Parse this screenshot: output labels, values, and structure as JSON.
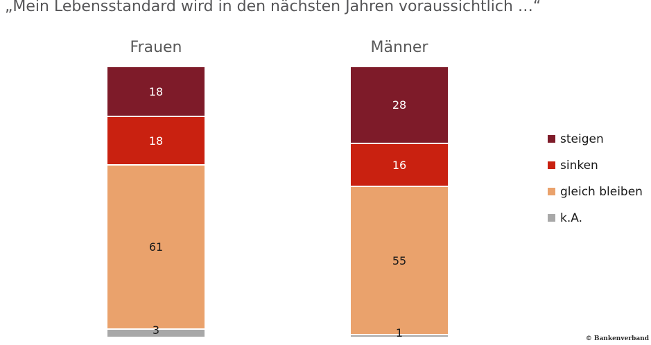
{
  "title": "„Mein Lebensstandard wird in den nächsten Jahren voraussichtlich …“",
  "footer": {
    "credit": "© Bankenverband"
  },
  "chart_data": {
    "type": "stacked-bar",
    "orientation": "vertical",
    "categories": [
      "Frauen",
      "Männer"
    ],
    "series": [
      {
        "name": "steigen",
        "color": "#7E1B29",
        "label_color": "#ffffff",
        "values": [
          18,
          28
        ]
      },
      {
        "name": "sinken",
        "color": "#C92110",
        "label_color": "#ffffff",
        "values": [
          18,
          16
        ]
      },
      {
        "name": "gleich bleiben",
        "color": "#EAA26C",
        "label_color": "#1a1a1a",
        "values": [
          61,
          55
        ]
      },
      {
        "name": "k.A.",
        "color": "#A8A8A8",
        "label_color": "#1a1a1a",
        "values": [
          3,
          1
        ]
      }
    ],
    "total": 100,
    "value_labels": "inside",
    "legend_position": "right",
    "grid": false,
    "axes_visible": false
  }
}
